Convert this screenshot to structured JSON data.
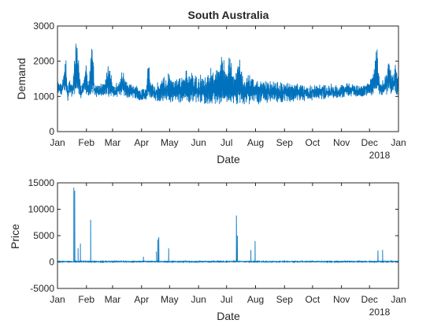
{
  "chart_data": [
    {
      "type": "line",
      "title": "South Australia",
      "xlabel": "Date",
      "ylabel": "Demand",
      "x_ticks": [
        "Jan",
        "Feb",
        "Mar",
        "Apr",
        "May",
        "Jun",
        "Jul",
        "Aug",
        "Sep",
        "Oct",
        "Nov",
        "Dec",
        "Jan"
      ],
      "x_secondary_label": "2018",
      "y_ticks": [
        "0",
        "1000",
        "2000",
        "3000"
      ],
      "ylim": [
        0,
        3000
      ],
      "xlim_days": [
        0,
        365
      ],
      "color": "#0072BD",
      "series": [
        {
          "values_description_points": [
            [
              0,
              1300
            ],
            [
              5,
              1250
            ],
            [
              9,
              2100
            ],
            [
              11,
              800
            ],
            [
              13,
              1500
            ],
            [
              16,
              1000
            ],
            [
              20,
              2850
            ],
            [
              22,
              2300
            ],
            [
              25,
              1000
            ],
            [
              28,
              1500
            ],
            [
              31,
              2000
            ],
            [
              33,
              1100
            ],
            [
              37,
              2750
            ],
            [
              40,
              1100
            ],
            [
              45,
              1200
            ],
            [
              50,
              1300
            ],
            [
              55,
              2050
            ],
            [
              60,
              1200
            ],
            [
              66,
              1300
            ],
            [
              70,
              1750
            ],
            [
              75,
              1200
            ],
            [
              81,
              1350
            ],
            [
              88,
              1000
            ],
            [
              95,
              1100
            ],
            [
              97,
              2150
            ],
            [
              100,
              1250
            ],
            [
              110,
              1300
            ],
            [
              120,
              1600
            ],
            [
              130,
              1400
            ],
            [
              140,
              1800
            ],
            [
              150,
              1500
            ],
            [
              160,
              1600
            ],
            [
              166,
              1700
            ],
            [
              172,
              1800
            ],
            [
              176,
              2300
            ],
            [
              180,
              1700
            ],
            [
              185,
              2100
            ],
            [
              190,
              1600
            ],
            [
              195,
              2100
            ],
            [
              200,
              1500
            ],
            [
              205,
              1800
            ],
            [
              210,
              1500
            ],
            [
              220,
              1500
            ],
            [
              230,
              1400
            ],
            [
              240,
              1350
            ],
            [
              250,
              1300
            ],
            [
              260,
              1250
            ],
            [
              270,
              1200
            ],
            [
              280,
              1200
            ],
            [
              290,
              1250
            ],
            [
              300,
              1150
            ],
            [
              310,
              1300
            ],
            [
              320,
              1150
            ],
            [
              330,
              1150
            ],
            [
              335,
              1350
            ],
            [
              340,
              2050
            ],
            [
              342,
              2550
            ],
            [
              345,
              1300
            ],
            [
              350,
              1400
            ],
            [
              355,
              2200
            ],
            [
              358,
              1500
            ],
            [
              362,
              2000
            ],
            [
              365,
              1400
            ]
          ]
        }
      ]
    },
    {
      "type": "line",
      "title": "",
      "xlabel": "Date",
      "ylabel": "Price",
      "x_ticks": [
        "Jan",
        "Feb",
        "Mar",
        "Apr",
        "May",
        "Jun",
        "Jul",
        "Aug",
        "Sep",
        "Oct",
        "Nov",
        "Dec",
        "Jan"
      ],
      "x_secondary_label": "2018",
      "y_ticks": [
        "-5000",
        "0",
        "5000",
        "10000",
        "15000"
      ],
      "ylim": [
        -5000,
        15000
      ],
      "xlim_days": [
        0,
        365
      ],
      "color": "#0072BD",
      "spikes": [
        [
          17.5,
          14100
        ],
        [
          18.5,
          13500
        ],
        [
          22,
          2600
        ],
        [
          24.5,
          3500
        ],
        [
          35.5,
          8000
        ],
        [
          92,
          1000
        ],
        [
          106,
          2000
        ],
        [
          107.5,
          4300
        ],
        [
          108.5,
          4700
        ],
        [
          119,
          2600
        ],
        [
          191.5,
          8800
        ],
        [
          192.5,
          5000
        ],
        [
          207,
          2300
        ],
        [
          211.5,
          4000
        ],
        [
          343,
          2200
        ],
        [
          348,
          2300
        ]
      ]
    }
  ]
}
